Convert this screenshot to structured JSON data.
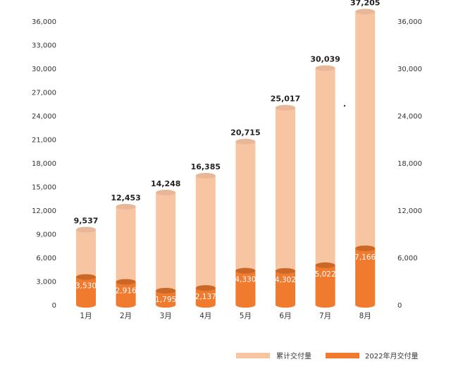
{
  "chart_data": {
    "type": "bar",
    "categories": [
      "1月",
      "2月",
      "3月",
      "4月",
      "5月",
      "6月",
      "7月",
      "8月"
    ],
    "series": [
      {
        "name": "累计交付量",
        "values": [
          9537,
          12453,
          14248,
          16385,
          20715,
          25017,
          30039,
          37205
        ],
        "color": "#f8c5a3"
      },
      {
        "name": "2022年月交付量",
        "values": [
          3530,
          2916,
          1795,
          2137,
          4330,
          4302,
          5022,
          7166
        ],
        "color": "#f07a2e"
      }
    ],
    "labels": {
      "totals": [
        "9,537",
        "12,453",
        "14,248",
        "16,385",
        "20,715",
        "25,017",
        "30,039",
        "37,205"
      ],
      "monthly": [
        "3,530",
        "2,916",
        "1,795",
        "2,137",
        "4,330",
        "4,302",
        "5,022",
        "7,166"
      ],
      "highlight_color": "#f07a2e"
    },
    "y_left": {
      "ylim": [
        0,
        36000
      ],
      "ticks": [
        0,
        3000,
        6000,
        9000,
        12000,
        15000,
        18000,
        21000,
        24000,
        27000,
        30000,
        33000,
        36000
      ],
      "tick_labels": [
        "0",
        "3,000",
        "6,000",
        "9,000",
        "12,000",
        "15,000",
        "18,000",
        "21,000",
        "24,000",
        "27,000",
        "30,000",
        "33,000",
        "36,000"
      ]
    },
    "y_right": {
      "ylim": [
        0,
        36000
      ],
      "ticks": [
        0,
        6000,
        12000,
        18000,
        24000,
        30000,
        36000
      ],
      "tick_labels": [
        "0",
        "6,000",
        "12,000",
        "18,000",
        "24,000",
        "30,000",
        "36,000"
      ]
    },
    "grid": false,
    "legend_position": "bottom-right"
  }
}
